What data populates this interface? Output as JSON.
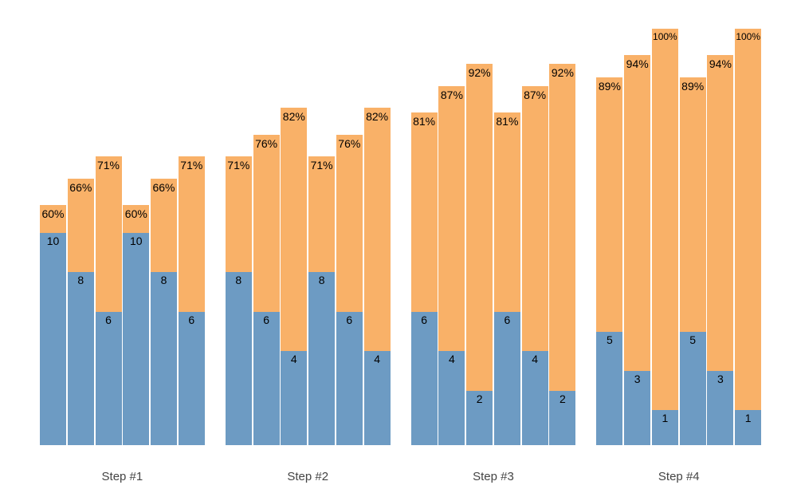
{
  "page": {
    "background": "#ffffff"
  },
  "chart_data": {
    "type": "bar",
    "stacked": true,
    "orientation": "vertical",
    "title": "",
    "xlabel": "",
    "ylabel": "",
    "legend": "none",
    "grid": false,
    "axes_hidden": true,
    "series_colors": {
      "blue_bottom": "#6D9BC3",
      "orange_top": "#F9B168"
    },
    "axis_label_color": "#444444",
    "bar_label_color": "#000000",
    "categories": [
      "Step #1",
      "Step #2",
      "Step #3",
      "Step #4"
    ],
    "groups": [
      {
        "label": "Step #1",
        "bars": [
          {
            "value": 10,
            "value_label": "10",
            "pct": 60,
            "pct_label": "60%"
          },
          {
            "value": 8,
            "value_label": "8",
            "pct": 66,
            "pct_label": "66%"
          },
          {
            "value": 6,
            "value_label": "6",
            "pct": 71,
            "pct_label": "71%"
          },
          {
            "value": 10,
            "value_label": "10",
            "pct": 60,
            "pct_label": "60%"
          },
          {
            "value": 8,
            "value_label": "8",
            "pct": 66,
            "pct_label": "66%"
          },
          {
            "value": 6,
            "value_label": "6",
            "pct": 71,
            "pct_label": "71%"
          }
        ]
      },
      {
        "label": "Step #2",
        "bars": [
          {
            "value": 8,
            "value_label": "8",
            "pct": 71,
            "pct_label": "71%"
          },
          {
            "value": 6,
            "value_label": "6",
            "pct": 76,
            "pct_label": "76%"
          },
          {
            "value": 4,
            "value_label": "4",
            "pct": 82,
            "pct_label": "82%"
          },
          {
            "value": 8,
            "value_label": "8",
            "pct": 71,
            "pct_label": "71%"
          },
          {
            "value": 6,
            "value_label": "6",
            "pct": 76,
            "pct_label": "76%"
          },
          {
            "value": 4,
            "value_label": "4",
            "pct": 82,
            "pct_label": "82%"
          }
        ]
      },
      {
        "label": "Step #3",
        "bars": [
          {
            "value": 6,
            "value_label": "6",
            "pct": 81,
            "pct_label": "81%"
          },
          {
            "value": 4,
            "value_label": "4",
            "pct": 87,
            "pct_label": "87%"
          },
          {
            "value": 2,
            "value_label": "2",
            "pct": 92,
            "pct_label": "92%"
          },
          {
            "value": 6,
            "value_label": "6",
            "pct": 81,
            "pct_label": "81%"
          },
          {
            "value": 4,
            "value_label": "4",
            "pct": 87,
            "pct_label": "87%"
          },
          {
            "value": 2,
            "value_label": "2",
            "pct": 92,
            "pct_label": "92%"
          }
        ]
      },
      {
        "label": "Step #4",
        "bars": [
          {
            "value": 5,
            "value_label": "5",
            "pct": 89,
            "pct_label": "89%"
          },
          {
            "value": 3,
            "value_label": "3",
            "pct": 94,
            "pct_label": "94%"
          },
          {
            "value": 1,
            "value_label": "1",
            "pct": 100,
            "pct_label": "100%"
          },
          {
            "value": 5,
            "value_label": "5",
            "pct": 89,
            "pct_label": "89%"
          },
          {
            "value": 3,
            "value_label": "3",
            "pct": 94,
            "pct_label": "94%"
          },
          {
            "value": 1,
            "value_label": "1",
            "pct": 100,
            "pct_label": "100%"
          }
        ]
      }
    ]
  }
}
